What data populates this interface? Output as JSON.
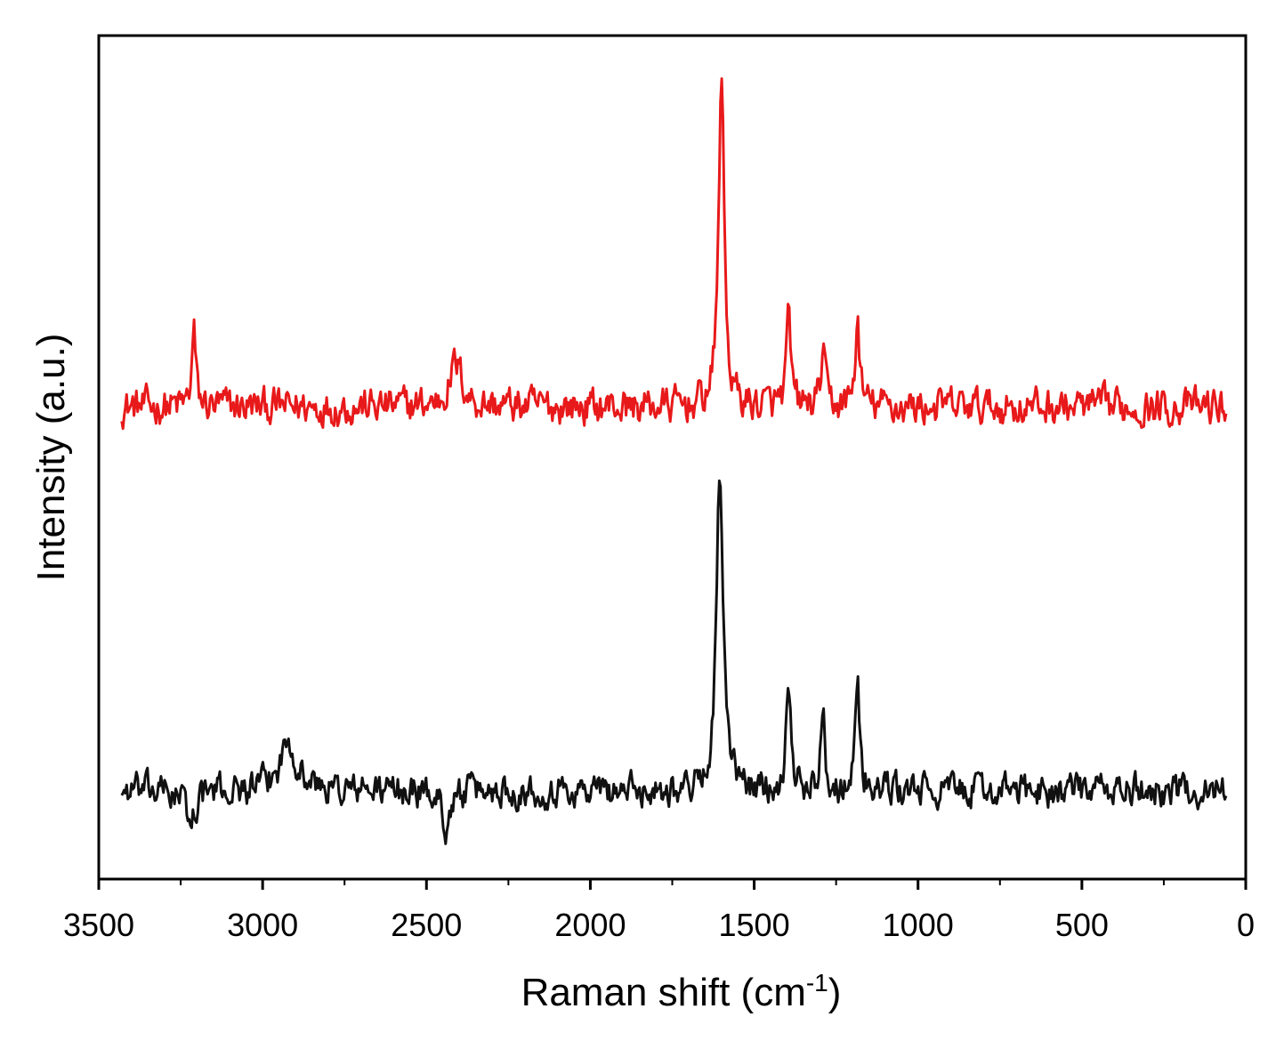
{
  "chart_data": {
    "type": "line",
    "xlabel": "Raman shift (cm",
    "xlabel_sup": "-1",
    "xlabel_end": ")",
    "ylabel": "Intensity (a.u.)",
    "xlim": [
      3500,
      0
    ],
    "ylim": [
      0,
      1
    ],
    "x_reversed": true,
    "y_tick_labels": false,
    "grid": false,
    "x_ticks": [
      3500,
      3000,
      2500,
      2000,
      1500,
      1000,
      500,
      0
    ],
    "x_minor_ticks": [
      3250,
      2750,
      2250,
      1750,
      1250,
      750,
      250
    ],
    "x_range_measured": [
      3430,
      60
    ],
    "series": [
      {
        "color": "#e8191a",
        "baseline": 0.56,
        "noise": 0.018,
        "peaks": [
          {
            "x": 1600,
            "height": 0.4,
            "width": 10
          },
          {
            "x": 1395,
            "height": 0.1,
            "width": 8
          },
          {
            "x": 1290,
            "height": 0.07,
            "width": 7
          },
          {
            "x": 1185,
            "height": 0.1,
            "width": 8
          },
          {
            "x": 3210,
            "height": 0.09,
            "width": 7
          },
          {
            "x": 2410,
            "height": 0.05,
            "width": 25
          }
        ]
      },
      {
        "color": "#111111",
        "baseline": 0.105,
        "noise": 0.016,
        "peaks": [
          {
            "x": 1605,
            "height": 0.38,
            "width": 12
          },
          {
            "x": 1395,
            "height": 0.14,
            "width": 8
          },
          {
            "x": 1290,
            "height": 0.11,
            "width": 7
          },
          {
            "x": 1185,
            "height": 0.13,
            "width": 8
          },
          {
            "x": 2920,
            "height": 0.06,
            "width": 30
          },
          {
            "x": 3220,
            "height": -0.04,
            "width": 15
          },
          {
            "x": 2440,
            "height": -0.04,
            "width": 15
          }
        ]
      }
    ]
  }
}
